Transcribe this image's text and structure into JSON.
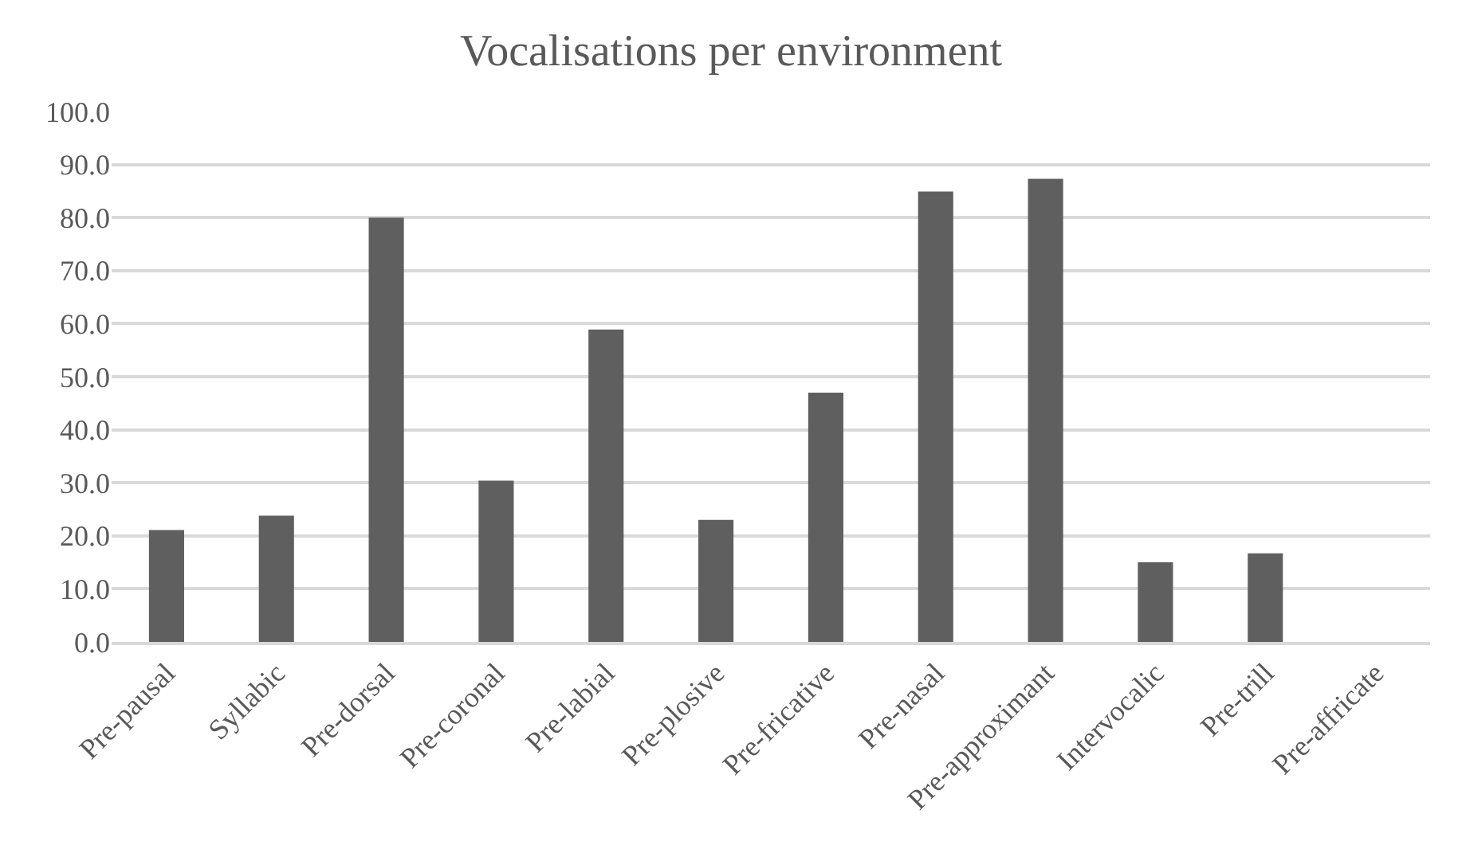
{
  "chart_data": {
    "type": "bar",
    "title": "Vocalisations per environment",
    "categories": [
      "Pre-pausal",
      "Syllabic",
      "Pre-dorsal",
      "Pre-coronal",
      "Pre-labial",
      "Pre-plosive",
      "Pre-fricative",
      "Pre-nasal",
      "Pre-approximant",
      "Intervocalic",
      "Pre-trill",
      "Pre-affricate"
    ],
    "values": [
      21.1,
      23.8,
      80.0,
      30.4,
      58.9,
      23.0,
      47.0,
      84.9,
      87.3,
      15.0,
      16.7,
      0.0
    ],
    "color": "#5f5f5f",
    "ylim": [
      0,
      100
    ],
    "yticks": [
      {
        "value": 0,
        "label": "0.0"
      },
      {
        "value": 10,
        "label": "10.0"
      },
      {
        "value": 20,
        "label": "20.0"
      },
      {
        "value": 30,
        "label": "30.0"
      },
      {
        "value": 40,
        "label": "40.0"
      },
      {
        "value": 50,
        "label": "50.0"
      },
      {
        "value": 60,
        "label": "60.0"
      },
      {
        "value": 70,
        "label": "70.0"
      },
      {
        "value": 80,
        "label": "80.0"
      },
      {
        "value": 90,
        "label": "90.0"
      },
      {
        "value": 100,
        "label": "100.0"
      }
    ],
    "grid": "y"
  }
}
